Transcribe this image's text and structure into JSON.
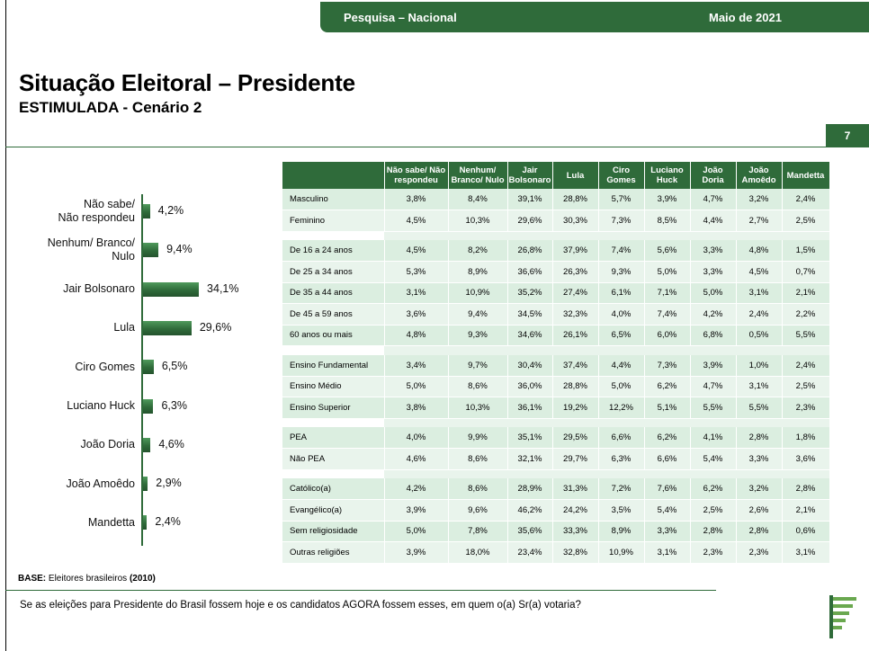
{
  "header": {
    "survey_label": "Pesquisa – Nacional",
    "date_label": "Maio de 2021"
  },
  "title": "Situação Eleitoral – Presidente",
  "subtitle": "ESTIMULADA - Cenário 2",
  "page_number": "7",
  "base_text": {
    "label": "BASE:",
    "description": " Eleitores brasileiros ",
    "count": "(2010)"
  },
  "question": "Se as eleições para Presidente do Brasil fossem hoje e os candidatos AGORA fossem esses, em quem o(a) Sr(a) votaria?",
  "colors": {
    "primary_green": "#2f6b3a",
    "row_light": "#e9f4ec",
    "row_dark": "#dbeee0"
  },
  "chart_data": [
    {
      "type": "bar",
      "orientation": "horizontal",
      "categories": [
        "Não sabe/ Não respondeu",
        "Nenhum/ Branco/ Nulo",
        "Jair Bolsonaro",
        "Lula",
        "Ciro Gomes",
        "Luciano Huck",
        "João Doria",
        "João Amoêdo",
        "Mandetta"
      ],
      "category_display": [
        [
          "Não sabe/",
          "Não respondeu"
        ],
        [
          "Nenhum/ Branco/",
          "Nulo"
        ],
        [
          "Jair Bolsonaro"
        ],
        [
          "Lula"
        ],
        [
          "Ciro Gomes"
        ],
        [
          "Luciano Huck"
        ],
        [
          "João Doria"
        ],
        [
          "João Amoêdo"
        ],
        [
          "Mandetta"
        ]
      ],
      "values": [
        4.2,
        9.4,
        34.1,
        29.6,
        6.5,
        6.3,
        4.6,
        2.9,
        2.4
      ],
      "value_labels": [
        "4,2%",
        "9,4%",
        "34,1%",
        "29,6%",
        "6,5%",
        "6,3%",
        "4,6%",
        "2,9%",
        "2,4%"
      ],
      "unit": "%",
      "grid": false,
      "legend": "none"
    },
    {
      "type": "table",
      "columns": [
        "Não sabe/ Não respondeu",
        "Nenhum/ Branco/ Nulo",
        "Jair Bolsonaro",
        "Lula",
        "Ciro Gomes",
        "Luciano Huck",
        "João Doria",
        "João Amoêdo",
        "Mandetta"
      ],
      "column_display": [
        [
          "Não sabe/ Não",
          "respondeu"
        ],
        [
          "Nenhum/",
          "Branco/ Nulo"
        ],
        [
          "Jair",
          "Bolsonaro"
        ],
        [
          "Lula"
        ],
        [
          "Ciro",
          "Gomes"
        ],
        [
          "Luciano",
          "Huck"
        ],
        [
          "João Doria"
        ],
        [
          "João",
          "Amoêdo"
        ],
        [
          "Mandetta"
        ]
      ],
      "groups": [
        {
          "rows": [
            {
              "label": "Masculino",
              "values": [
                "3,8%",
                "8,4%",
                "39,1%",
                "28,8%",
                "5,7%",
                "3,9%",
                "4,7%",
                "3,2%",
                "2,4%"
              ]
            },
            {
              "label": "Feminino",
              "values": [
                "4,5%",
                "10,3%",
                "29,6%",
                "30,3%",
                "7,3%",
                "8,5%",
                "4,4%",
                "2,7%",
                "2,5%"
              ]
            }
          ]
        },
        {
          "rows": [
            {
              "label": "De 16 a 24 anos",
              "values": [
                "4,5%",
                "8,2%",
                "26,8%",
                "37,9%",
                "7,4%",
                "5,6%",
                "3,3%",
                "4,8%",
                "1,5%"
              ]
            },
            {
              "label": "De 25 a 34 anos",
              "values": [
                "5,3%",
                "8,9%",
                "36,6%",
                "26,3%",
                "9,3%",
                "5,0%",
                "3,3%",
                "4,5%",
                "0,7%"
              ]
            },
            {
              "label": "De 35 a 44 anos",
              "values": [
                "3,1%",
                "10,9%",
                "35,2%",
                "27,4%",
                "6,1%",
                "7,1%",
                "5,0%",
                "3,1%",
                "2,1%"
              ]
            },
            {
              "label": "De 45 a 59 anos",
              "values": [
                "3,6%",
                "9,4%",
                "34,5%",
                "32,3%",
                "4,0%",
                "7,4%",
                "4,2%",
                "2,4%",
                "2,2%"
              ]
            },
            {
              "label": "60 anos ou mais",
              "values": [
                "4,8%",
                "9,3%",
                "34,6%",
                "26,1%",
                "6,5%",
                "6,0%",
                "6,8%",
                "0,5%",
                "5,5%"
              ]
            }
          ]
        },
        {
          "rows": [
            {
              "label": "Ensino Fundamental",
              "values": [
                "3,4%",
                "9,7%",
                "30,4%",
                "37,4%",
                "4,4%",
                "7,3%",
                "3,9%",
                "1,0%",
                "2,4%"
              ]
            },
            {
              "label": "Ensino Médio",
              "values": [
                "5,0%",
                "8,6%",
                "36,0%",
                "28,8%",
                "5,0%",
                "6,2%",
                "4,7%",
                "3,1%",
                "2,5%"
              ]
            },
            {
              "label": "Ensino Superior",
              "values": [
                "3,8%",
                "10,3%",
                "36,1%",
                "19,2%",
                "12,2%",
                "5,1%",
                "5,5%",
                "5,5%",
                "2,3%"
              ]
            }
          ]
        },
        {
          "rows": [
            {
              "label": "PEA",
              "values": [
                "4,0%",
                "9,9%",
                "35,1%",
                "29,5%",
                "6,6%",
                "6,2%",
                "4,1%",
                "2,8%",
                "1,8%"
              ]
            },
            {
              "label": "Não PEA",
              "values": [
                "4,6%",
                "8,6%",
                "32,1%",
                "29,7%",
                "6,3%",
                "6,6%",
                "5,4%",
                "3,3%",
                "3,6%"
              ]
            }
          ]
        },
        {
          "rows": [
            {
              "label": "Católico(a)",
              "values": [
                "4,2%",
                "8,6%",
                "28,9%",
                "31,3%",
                "7,2%",
                "7,6%",
                "6,2%",
                "3,2%",
                "2,8%"
              ]
            },
            {
              "label": "Evangélico(a)",
              "values": [
                "3,9%",
                "9,6%",
                "46,2%",
                "24,2%",
                "3,5%",
                "5,4%",
                "2,5%",
                "2,6%",
                "2,1%"
              ]
            },
            {
              "label": "Sem religiosidade",
              "values": [
                "5,0%",
                "7,8%",
                "35,6%",
                "33,3%",
                "8,9%",
                "3,3%",
                "2,8%",
                "2,8%",
                "0,6%"
              ]
            },
            {
              "label": "Outras religiões",
              "values": [
                "3,9%",
                "18,0%",
                "23,4%",
                "32,8%",
                "10,9%",
                "3,1%",
                "2,3%",
                "2,3%",
                "3,1%"
              ]
            }
          ]
        }
      ]
    }
  ]
}
